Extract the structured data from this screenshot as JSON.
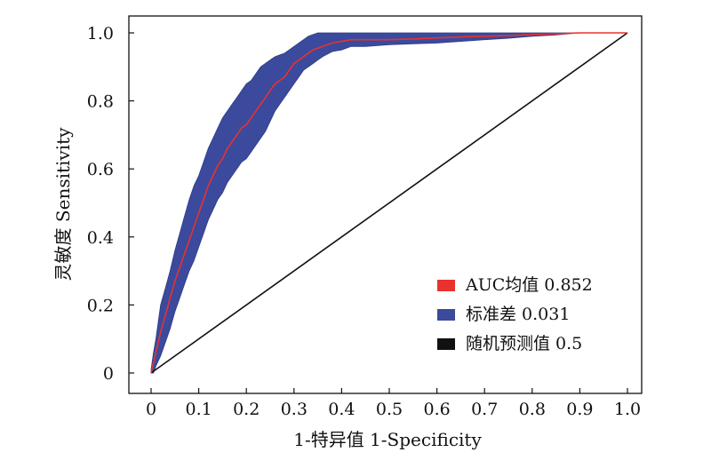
{
  "chart_data": {
    "type": "line",
    "xlabel": "1-特异值 1-Specificity",
    "ylabel": "灵敏度 Sensitivity",
    "xlim": [
      0,
      1
    ],
    "ylim": [
      0,
      1
    ],
    "x_ticks": [
      "0",
      "0.1",
      "0.2",
      "0.3",
      "0.4",
      "0.5",
      "0.6",
      "0.7",
      "0.8",
      "0.9",
      "1.0"
    ],
    "y_ticks": [
      "0",
      "0.2",
      "0.4",
      "0.6",
      "0.8",
      "1.0"
    ],
    "grid": false,
    "legend_position": "bottom-right",
    "legend": [
      {
        "label": "AUC均值 0.852",
        "color": "#e8322e"
      },
      {
        "label": "标准差 0.031",
        "color": "#3b4a9c"
      },
      {
        "label": "随机预测值 0.5",
        "color": "#111111"
      }
    ],
    "series": [
      {
        "name": "AUC均值 0.852",
        "color": "#e8322e",
        "x": [
          0,
          0.005,
          0.01,
          0.02,
          0.03,
          0.04,
          0.05,
          0.06,
          0.07,
          0.08,
          0.09,
          0.1,
          0.11,
          0.12,
          0.13,
          0.14,
          0.15,
          0.16,
          0.17,
          0.18,
          0.19,
          0.2,
          0.21,
          0.22,
          0.23,
          0.24,
          0.25,
          0.26,
          0.27,
          0.28,
          0.29,
          0.3,
          0.31,
          0.32,
          0.33,
          0.34,
          0.35,
          0.36,
          0.38,
          0.4,
          0.42,
          0.45,
          0.5,
          0.55,
          0.6,
          0.65,
          0.7,
          0.75,
          0.8,
          0.85,
          0.9,
          0.95,
          1.0
        ],
        "values": [
          0,
          0.03,
          0.06,
          0.12,
          0.17,
          0.22,
          0.27,
          0.31,
          0.35,
          0.39,
          0.43,
          0.47,
          0.51,
          0.55,
          0.58,
          0.61,
          0.63,
          0.66,
          0.68,
          0.7,
          0.72,
          0.73,
          0.75,
          0.77,
          0.79,
          0.81,
          0.83,
          0.85,
          0.86,
          0.87,
          0.89,
          0.91,
          0.92,
          0.93,
          0.94,
          0.95,
          0.955,
          0.96,
          0.97,
          0.975,
          0.98,
          0.98,
          0.98,
          0.982,
          0.985,
          0.988,
          0.99,
          0.992,
          0.995,
          0.997,
          1.0,
          1.0,
          1.0
        ]
      },
      {
        "name": "标准差 0.031",
        "color": "#3b4a9c",
        "x": [
          0,
          0.005,
          0.01,
          0.02,
          0.03,
          0.04,
          0.05,
          0.06,
          0.07,
          0.08,
          0.09,
          0.1,
          0.11,
          0.12,
          0.13,
          0.14,
          0.15,
          0.16,
          0.17,
          0.18,
          0.19,
          0.2,
          0.21,
          0.22,
          0.23,
          0.24,
          0.25,
          0.26,
          0.27,
          0.28,
          0.29,
          0.3,
          0.31,
          0.32,
          0.33,
          0.34,
          0.35,
          0.36,
          0.38,
          0.4,
          0.42,
          0.45,
          0.5,
          0.55,
          0.6,
          0.65,
          0.7,
          0.75,
          0.8,
          0.85,
          0.9,
          0.95,
          1.0
        ],
        "upper": [
          0.01,
          0.06,
          0.1,
          0.2,
          0.25,
          0.3,
          0.36,
          0.41,
          0.46,
          0.51,
          0.55,
          0.58,
          0.62,
          0.66,
          0.69,
          0.72,
          0.75,
          0.77,
          0.79,
          0.81,
          0.83,
          0.85,
          0.86,
          0.88,
          0.9,
          0.91,
          0.92,
          0.93,
          0.935,
          0.94,
          0.95,
          0.96,
          0.97,
          0.98,
          0.99,
          0.995,
          1.0,
          1.0,
          1.0,
          1.0,
          1.0,
          1.0,
          1.0,
          1.0,
          1.0,
          1.0,
          1.0,
          1.0,
          1.0,
          1.0,
          1.0,
          1.0,
          1.0
        ],
        "lower": [
          0,
          0.0,
          0.02,
          0.05,
          0.09,
          0.13,
          0.18,
          0.22,
          0.26,
          0.3,
          0.33,
          0.37,
          0.41,
          0.45,
          0.48,
          0.51,
          0.53,
          0.56,
          0.58,
          0.6,
          0.62,
          0.63,
          0.65,
          0.67,
          0.69,
          0.71,
          0.74,
          0.77,
          0.79,
          0.81,
          0.83,
          0.85,
          0.87,
          0.89,
          0.9,
          0.91,
          0.92,
          0.93,
          0.945,
          0.95,
          0.96,
          0.96,
          0.965,
          0.968,
          0.97,
          0.975,
          0.98,
          0.984,
          0.99,
          0.994,
          1.0,
          1.0,
          1.0
        ]
      },
      {
        "name": "随机预测值 0.5",
        "color": "#111111",
        "x": [
          0,
          1
        ],
        "values": [
          0,
          1
        ]
      }
    ]
  }
}
